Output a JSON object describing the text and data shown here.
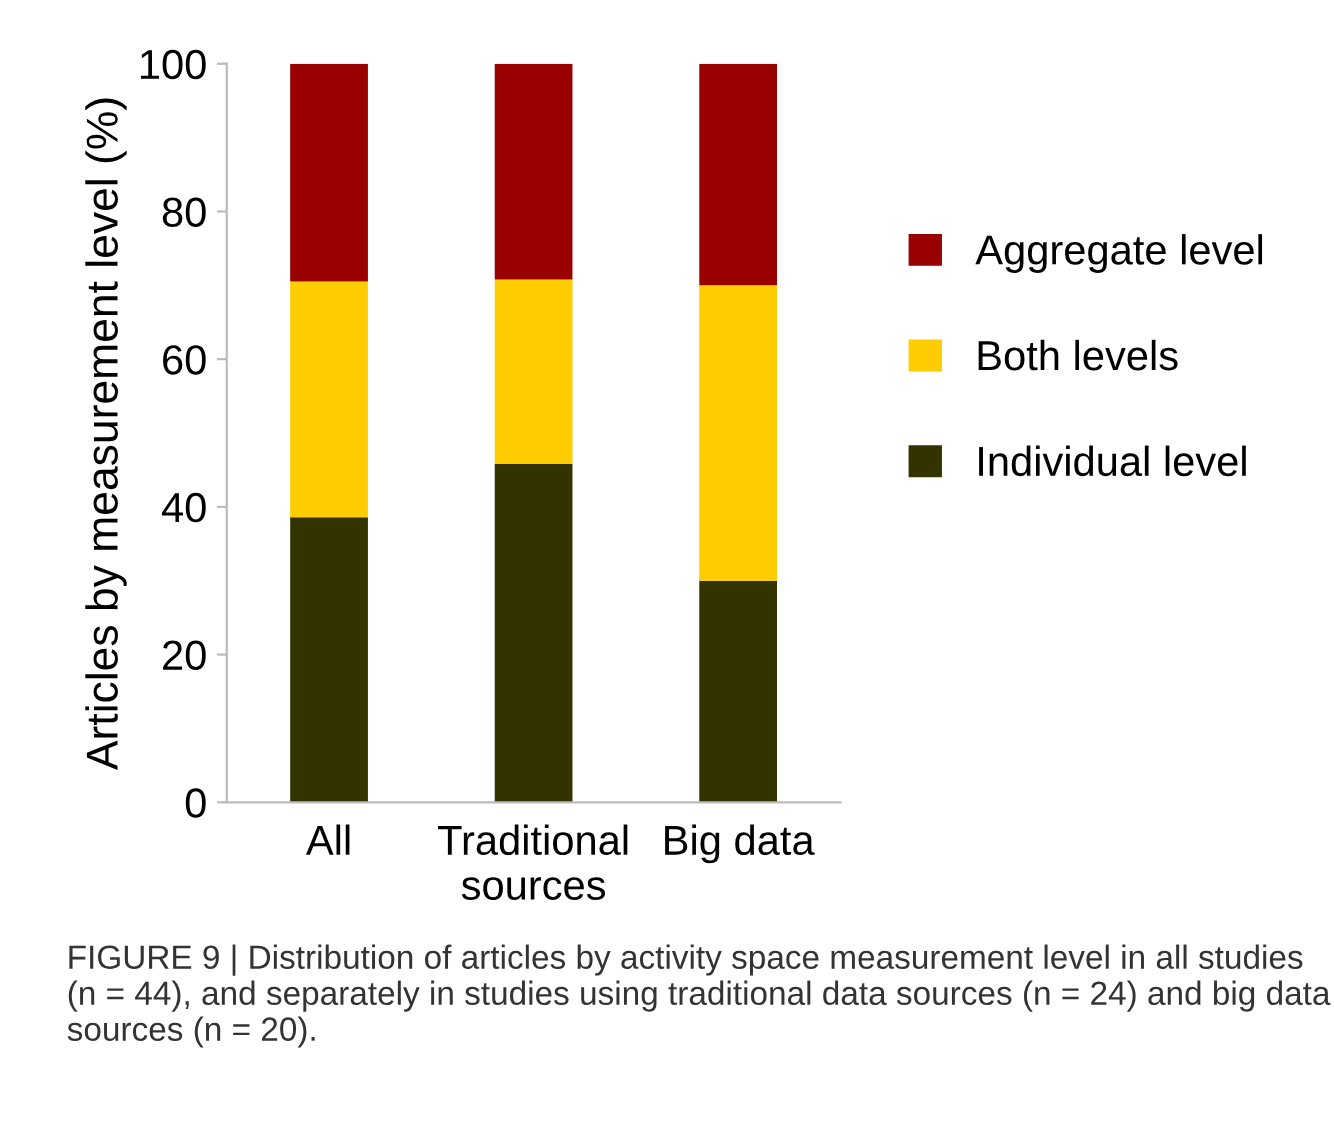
{
  "chart_data": {
    "type": "bar",
    "stacked": true,
    "categories": [
      "All",
      "Traditional\nsources",
      "Big data"
    ],
    "series": [
      {
        "name": "Individual level",
        "color": "#333300",
        "values": [
          38.6,
          45.8,
          30.0
        ]
      },
      {
        "name": "Both levels",
        "color": "#ffcc00",
        "values": [
          31.9,
          25.0,
          40.0
        ]
      },
      {
        "name": "Aggregate level",
        "color": "#990000",
        "values": [
          29.5,
          29.2,
          30.0
        ]
      }
    ],
    "ylabel": "Articles by measurement level (%)",
    "ylim": [
      0,
      100
    ],
    "yticks": [
      0,
      20,
      40,
      60,
      80,
      100
    ],
    "grid": false,
    "legend": "right",
    "annotations": [
      "FIGURE 9 | Distribution of articles by activity space measurement level in all studies (n = 44), and separately in studies using traditional data sources (n = 24) and big data sources (n = 20)."
    ]
  }
}
